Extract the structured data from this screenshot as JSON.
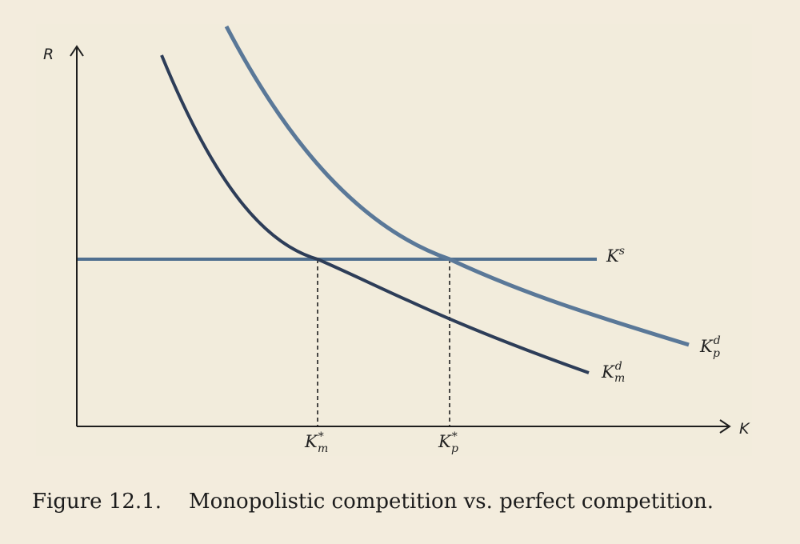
{
  "diagram": {
    "y_axis_label": "R",
    "x_axis_label": "K",
    "curves": [
      {
        "id": "supply",
        "base": "K",
        "sub": "",
        "sup": "s"
      },
      {
        "id": "demand_perfect",
        "base": "K",
        "sub": "p",
        "sup": "d"
      },
      {
        "id": "demand_monopolistic",
        "base": "K",
        "sub": "m",
        "sup": "d"
      }
    ],
    "tick_labels": [
      {
        "id": "k_m_star",
        "base": "K",
        "sub": "m",
        "sup": "*"
      },
      {
        "id": "k_p_star",
        "base": "K",
        "sub": "p",
        "sup": "*"
      }
    ],
    "colors": {
      "supply_line": "#506f8f",
      "demand_perfect": "#5a7898",
      "demand_monopolistic": "#2d3d58",
      "axes": "#1e1e1e",
      "background": "#f3ecdd"
    }
  },
  "caption": {
    "number": "Figure 12.1.",
    "text": "Monopolistic competition vs. perfect competition."
  }
}
